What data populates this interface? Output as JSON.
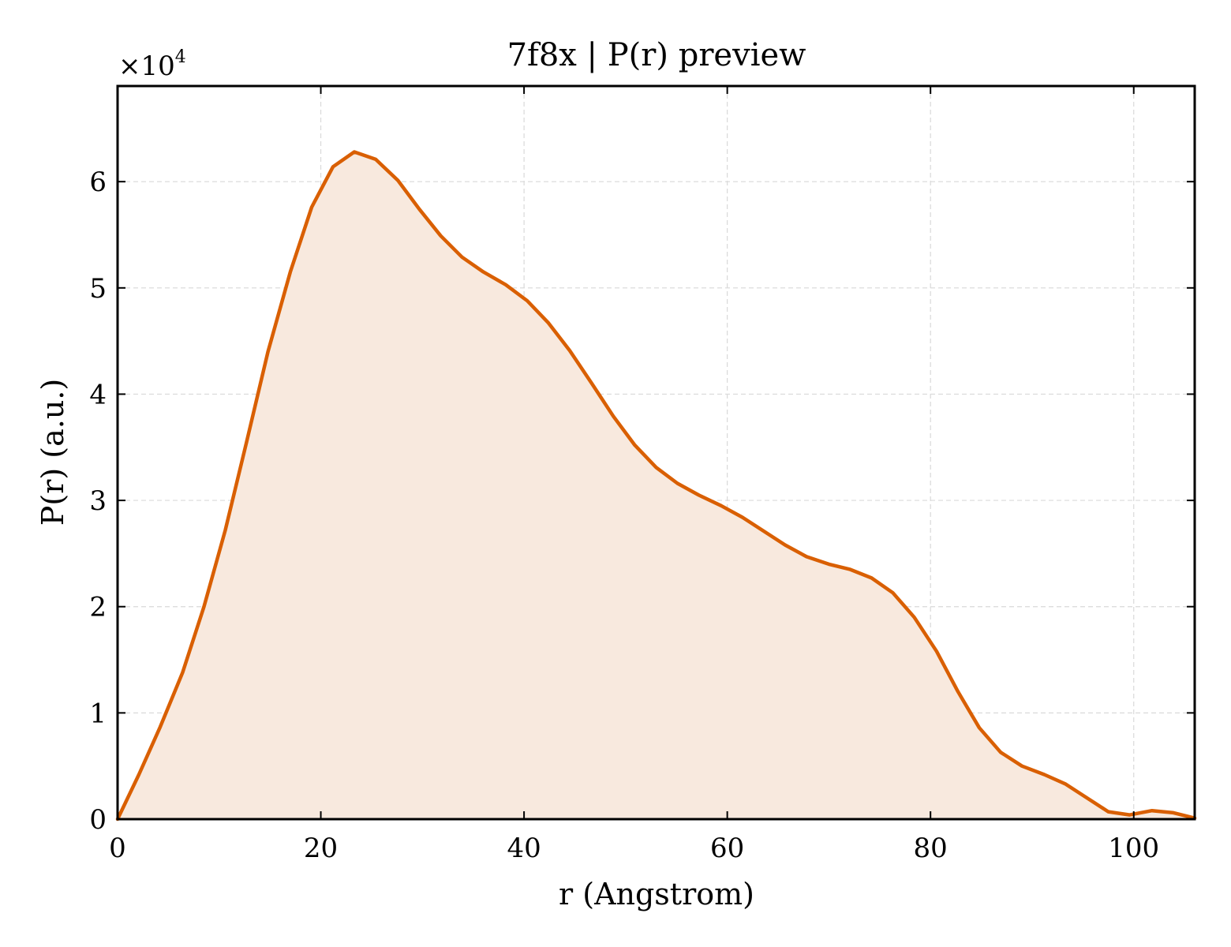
{
  "chart_data": {
    "type": "area",
    "title": "7f8x | P(r) preview",
    "xlabel": "r (Angstrom)",
    "ylabel": "P(r) (a.u.)",
    "y_multiplier": "×10",
    "y_multiplier_exponent": "4",
    "xlim": [
      0,
      106
    ],
    "ylim": [
      0,
      6.9
    ],
    "y_units_scale": 10000,
    "grid": true,
    "x_ticks": [
      0,
      20,
      40,
      60,
      80,
      100
    ],
    "x_tick_labels": [
      "0",
      "20",
      "40",
      "60",
      "80",
      "100"
    ],
    "y_ticks": [
      0,
      1,
      2,
      3,
      4,
      5,
      6
    ],
    "y_tick_labels": [
      "0",
      "1",
      "2",
      "3",
      "4",
      "5",
      "6"
    ],
    "colors": {
      "line": "#d95f02",
      "fill": "#f8e9de"
    },
    "series": [
      {
        "x": [
          0,
          2.1,
          4.2,
          6.4,
          8.5,
          10.6,
          12.7,
          14.8,
          17.0,
          19.1,
          21.2,
          23.3,
          25.4,
          27.6,
          29.7,
          31.8,
          33.9,
          36.0,
          38.2,
          40.3,
          42.4,
          44.5,
          46.6,
          48.8,
          50.9,
          53.0,
          55.1,
          57.2,
          59.4,
          61.5,
          63.6,
          65.7,
          67.8,
          70.0,
          72.1,
          74.2,
          76.3,
          78.4,
          80.6,
          82.7,
          84.8,
          86.9,
          89.0,
          91.2,
          93.3,
          95.4,
          97.5,
          99.6,
          101.8,
          103.9,
          106.0
        ],
        "values": [
          0,
          0.42,
          0.87,
          1.38,
          2.0,
          2.72,
          3.55,
          4.4,
          5.15,
          5.76,
          6.14,
          6.28,
          6.21,
          6.01,
          5.74,
          5.49,
          5.29,
          5.15,
          5.03,
          4.88,
          4.67,
          4.41,
          4.11,
          3.79,
          3.52,
          3.31,
          3.16,
          3.05,
          2.95,
          2.84,
          2.71,
          2.58,
          2.47,
          2.4,
          2.35,
          2.27,
          2.13,
          1.9,
          1.58,
          1.2,
          0.86,
          0.63,
          0.5,
          0.42,
          0.33,
          0.2,
          0.07,
          0.04,
          0.08,
          0.06,
          0.01
        ]
      }
    ]
  }
}
